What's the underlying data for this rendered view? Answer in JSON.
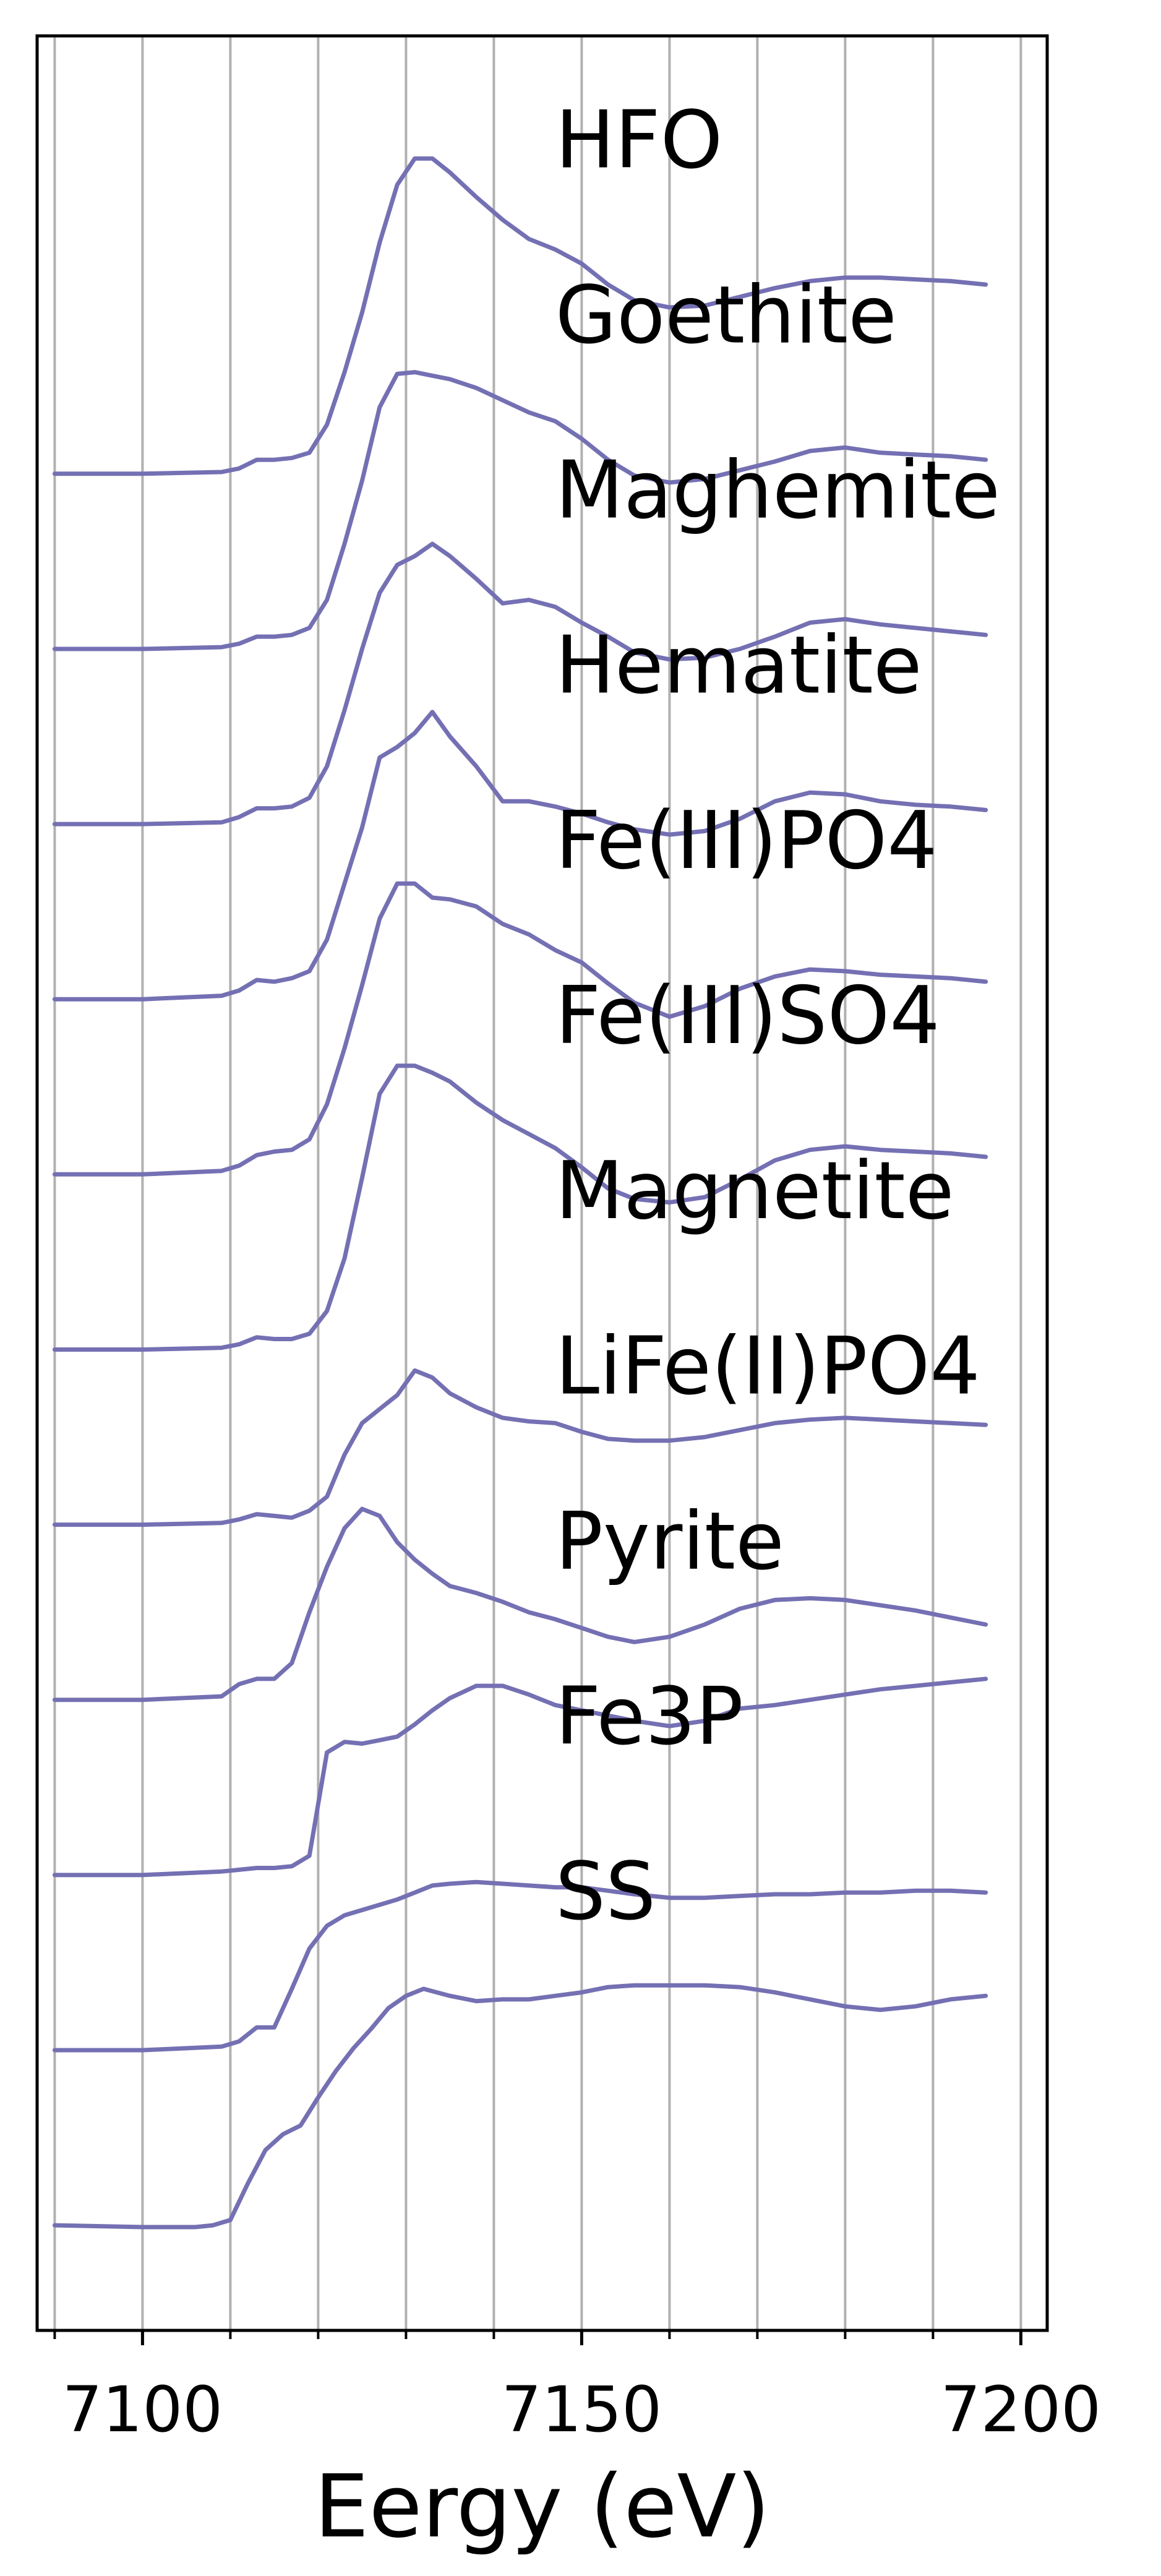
{
  "chart_data": {
    "type": "line",
    "title": "",
    "xlabel": "Eergy (eV)",
    "ylabel": "",
    "xlim": [
      7088,
      7203
    ],
    "ylim": [
      -0.6,
      12.5
    ],
    "grid": {
      "x_major": true,
      "x_minor": true,
      "y": false
    },
    "legend": "none",
    "line_color": "#7470b3",
    "x_tick_labels": [
      "7100",
      "7150",
      "7200"
    ],
    "x_ticks_major": [
      7100,
      7150,
      7200
    ],
    "x_ticks_minor": [
      7090,
      7110,
      7120,
      7130,
      7140,
      7160,
      7170,
      7180,
      7190
    ],
    "label_x": 7147,
    "series": [
      {
        "name": "HFO",
        "offset": 10,
        "x": [
          7090,
          7100,
          7109,
          7111,
          7113,
          7115,
          7117,
          7119,
          7121,
          7123,
          7125,
          7127,
          7129,
          7131,
          7133,
          7135,
          7138,
          7141,
          7144,
          7147,
          7150,
          7153,
          7156,
          7160,
          7164,
          7168,
          7172,
          7176,
          7180,
          7184,
          7188,
          7192,
          7196
        ],
        "y": [
          0.0,
          0.0,
          0.01,
          0.03,
          0.08,
          0.08,
          0.09,
          0.12,
          0.28,
          0.58,
          0.92,
          1.32,
          1.65,
          1.8,
          1.8,
          1.72,
          1.58,
          1.45,
          1.34,
          1.28,
          1.2,
          1.08,
          0.99,
          0.95,
          0.96,
          1.01,
          1.06,
          1.1,
          1.12,
          1.12,
          1.11,
          1.1,
          1.08
        ]
      },
      {
        "name": "Goethite",
        "offset": 9,
        "x": [
          7090,
          7100,
          7109,
          7111,
          7113,
          7115,
          7117,
          7119,
          7121,
          7123,
          7125,
          7127,
          7129,
          7131,
          7133,
          7135,
          7138,
          7141,
          7144,
          7147,
          7150,
          7153,
          7156,
          7160,
          7164,
          7168,
          7172,
          7176,
          7180,
          7184,
          7188,
          7192,
          7196
        ],
        "y": [
          0.0,
          0.0,
          0.01,
          0.03,
          0.07,
          0.07,
          0.08,
          0.12,
          0.28,
          0.6,
          0.96,
          1.38,
          1.57,
          1.58,
          1.56,
          1.54,
          1.49,
          1.42,
          1.35,
          1.3,
          1.2,
          1.08,
          0.99,
          0.95,
          0.97,
          1.02,
          1.07,
          1.13,
          1.15,
          1.12,
          1.11,
          1.1,
          1.08
        ]
      },
      {
        "name": "Maghemite",
        "offset": 8,
        "x": [
          7090,
          7100,
          7109,
          7111,
          7113,
          7115,
          7117,
          7119,
          7121,
          7123,
          7125,
          7127,
          7129,
          7131,
          7133,
          7135,
          7138,
          7141,
          7144,
          7147,
          7150,
          7153,
          7156,
          7160,
          7164,
          7168,
          7172,
          7176,
          7180,
          7184,
          7188,
          7192,
          7196
        ],
        "y": [
          0.0,
          0.0,
          0.01,
          0.04,
          0.09,
          0.09,
          0.1,
          0.15,
          0.33,
          0.65,
          1.0,
          1.32,
          1.48,
          1.53,
          1.6,
          1.53,
          1.4,
          1.26,
          1.28,
          1.24,
          1.15,
          1.07,
          0.98,
          0.94,
          0.95,
          1.0,
          1.07,
          1.15,
          1.17,
          1.14,
          1.12,
          1.1,
          1.08
        ]
      },
      {
        "name": "Hematite",
        "offset": 7,
        "x": [
          7090,
          7100,
          7109,
          7111,
          7113,
          7115,
          7117,
          7119,
          7121,
          7123,
          7125,
          7127,
          7129,
          7131,
          7133,
          7135,
          7138,
          7141,
          7144,
          7147,
          7150,
          7153,
          7156,
          7160,
          7164,
          7168,
          7172,
          7176,
          7180,
          7184,
          7188,
          7192,
          7196
        ],
        "y": [
          0.0,
          0.0,
          0.02,
          0.05,
          0.11,
          0.1,
          0.12,
          0.16,
          0.34,
          0.66,
          0.98,
          1.38,
          1.44,
          1.52,
          1.64,
          1.5,
          1.33,
          1.13,
          1.13,
          1.1,
          1.06,
          1.01,
          0.97,
          0.94,
          0.96,
          1.03,
          1.13,
          1.18,
          1.17,
          1.13,
          1.11,
          1.1,
          1.08
        ]
      },
      {
        "name": "Fe(III)PO4",
        "offset": 6,
        "x": [
          7090,
          7100,
          7109,
          7111,
          7113,
          7115,
          7117,
          7119,
          7121,
          7123,
          7125,
          7127,
          7129,
          7131,
          7133,
          7135,
          7138,
          7141,
          7144,
          7147,
          7150,
          7153,
          7156,
          7160,
          7164,
          7168,
          7172,
          7176,
          7180,
          7184,
          7188,
          7192,
          7196
        ],
        "y": [
          0.0,
          0.0,
          0.02,
          0.05,
          0.11,
          0.13,
          0.14,
          0.2,
          0.4,
          0.72,
          1.08,
          1.46,
          1.66,
          1.66,
          1.58,
          1.57,
          1.53,
          1.43,
          1.37,
          1.28,
          1.21,
          1.09,
          0.98,
          0.9,
          0.96,
          1.06,
          1.13,
          1.17,
          1.16,
          1.14,
          1.13,
          1.12,
          1.1
        ]
      },
      {
        "name": "Fe(III)SO4",
        "offset": 5,
        "x": [
          7090,
          7100,
          7109,
          7111,
          7113,
          7115,
          7117,
          7119,
          7121,
          7123,
          7125,
          7127,
          7129,
          7131,
          7133,
          7135,
          7138,
          7141,
          7144,
          7147,
          7150,
          7153,
          7156,
          7160,
          7164,
          7168,
          7172,
          7176,
          7180,
          7184,
          7188,
          7192,
          7196
        ],
        "y": [
          0.0,
          0.0,
          0.01,
          0.03,
          0.07,
          0.06,
          0.06,
          0.09,
          0.22,
          0.52,
          0.98,
          1.46,
          1.62,
          1.62,
          1.58,
          1.53,
          1.41,
          1.31,
          1.23,
          1.15,
          1.04,
          0.92,
          0.86,
          0.84,
          0.87,
          0.97,
          1.08,
          1.14,
          1.16,
          1.14,
          1.13,
          1.12,
          1.1
        ]
      },
      {
        "name": "Magnetite",
        "offset": 4,
        "x": [
          7090,
          7100,
          7109,
          7111,
          7113,
          7115,
          7117,
          7119,
          7121,
          7123,
          7125,
          7127,
          7129,
          7131,
          7133,
          7135,
          7138,
          7141,
          7144,
          7147,
          7150,
          7153,
          7156,
          7160,
          7164,
          7168,
          7172,
          7176,
          7180,
          7184,
          7188,
          7192,
          7196
        ],
        "y": [
          0.0,
          0.0,
          0.01,
          0.03,
          0.06,
          0.05,
          0.04,
          0.08,
          0.16,
          0.4,
          0.58,
          0.66,
          0.74,
          0.88,
          0.84,
          0.75,
          0.67,
          0.61,
          0.59,
          0.58,
          0.53,
          0.49,
          0.48,
          0.48,
          0.5,
          0.54,
          0.58,
          0.6,
          0.61,
          0.6,
          0.59,
          0.58,
          0.57
        ]
      },
      {
        "name": "LiFe(II)PO4",
        "offset": 3,
        "x": [
          7090,
          7100,
          7109,
          7111,
          7113,
          7115,
          7117,
          7119,
          7121,
          7123,
          7125,
          7127,
          7129,
          7131,
          7133,
          7135,
          7138,
          7141,
          7144,
          7147,
          7150,
          7153,
          7156,
          7160,
          7164,
          7168,
          7172,
          7176,
          7180,
          7184,
          7188,
          7192,
          7196
        ],
        "y": [
          0.0,
          0.0,
          0.02,
          0.09,
          0.12,
          0.12,
          0.21,
          0.5,
          0.76,
          0.98,
          1.09,
          1.05,
          0.9,
          0.8,
          0.72,
          0.65,
          0.61,
          0.56,
          0.5,
          0.46,
          0.41,
          0.36,
          0.33,
          0.36,
          0.43,
          0.52,
          0.57,
          0.58,
          0.57,
          0.54,
          0.51,
          0.47,
          0.43
        ]
      },
      {
        "name": "Pyrite",
        "offset": 2,
        "x": [
          7090,
          7100,
          7109,
          7111,
          7113,
          7115,
          7117,
          7119,
          7121,
          7123,
          7125,
          7127,
          7129,
          7131,
          7133,
          7135,
          7138,
          7141,
          7144,
          7147,
          7150,
          7153,
          7156,
          7160,
          7164,
          7168,
          7172,
          7176,
          7180,
          7184,
          7188,
          7192,
          7196
        ],
        "y": [
          0.0,
          0.0,
          0.02,
          0.03,
          0.04,
          0.04,
          0.05,
          0.11,
          0.7,
          0.76,
          0.75,
          0.77,
          0.79,
          0.86,
          0.94,
          1.01,
          1.08,
          1.08,
          1.03,
          0.97,
          0.94,
          0.91,
          0.88,
          0.85,
          0.88,
          0.95,
          0.97,
          1.0,
          1.03,
          1.06,
          1.08,
          1.1,
          1.12
        ]
      },
      {
        "name": "Fe3P",
        "offset": 1,
        "x": [
          7090,
          7100,
          7109,
          7111,
          7113,
          7115,
          7117,
          7119,
          7121,
          7123,
          7125,
          7127,
          7129,
          7131,
          7133,
          7135,
          7138,
          7141,
          7144,
          7147,
          7150,
          7153,
          7156,
          7160,
          7164,
          7168,
          7172,
          7176,
          7180,
          7184,
          7188,
          7192,
          7196
        ],
        "y": [
          0.0,
          0.0,
          0.02,
          0.05,
          0.13,
          0.13,
          0.35,
          0.58,
          0.71,
          0.77,
          0.8,
          0.83,
          0.86,
          0.9,
          0.94,
          0.95,
          0.96,
          0.95,
          0.94,
          0.93,
          0.93,
          0.91,
          0.89,
          0.87,
          0.87,
          0.88,
          0.89,
          0.89,
          0.9,
          0.9,
          0.91,
          0.91,
          0.9
        ]
      },
      {
        "name": "SS",
        "offset": 0,
        "x": [
          7090,
          7100,
          7106,
          7108,
          7110,
          7112,
          7114,
          7116,
          7118,
          7120,
          7122,
          7124,
          7126,
          7128,
          7130,
          7132,
          7135,
          7138,
          7141,
          7144,
          7147,
          7150,
          7153,
          7156,
          7160,
          7164,
          7168,
          7172,
          7176,
          7180,
          7184,
          7188,
          7192,
          7196
        ],
        "y": [
          0.0,
          -0.01,
          -0.01,
          0.0,
          0.03,
          0.24,
          0.43,
          0.52,
          0.57,
          0.73,
          0.88,
          1.01,
          1.12,
          1.24,
          1.31,
          1.35,
          1.31,
          1.28,
          1.29,
          1.29,
          1.31,
          1.33,
          1.36,
          1.37,
          1.37,
          1.37,
          1.36,
          1.33,
          1.29,
          1.25,
          1.23,
          1.25,
          1.29,
          1.31
        ]
      }
    ]
  }
}
